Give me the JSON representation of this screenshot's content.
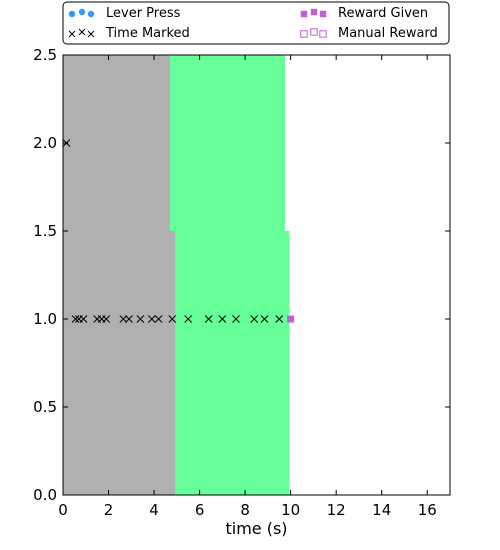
{
  "chart_data": {
    "type": "scatter",
    "title": "",
    "xlabel": "time (s)",
    "ylabel": "",
    "xlim": [
      0,
      17
    ],
    "ylim": [
      0,
      2.5
    ],
    "x_ticks": [
      "0",
      "2",
      "4",
      "6",
      "8",
      "10",
      "12",
      "14",
      "16"
    ],
    "y_ticks": [
      "0.0",
      "0.5",
      "1.0",
      "1.5",
      "2.0",
      "2.5"
    ],
    "grid": false,
    "legend": {
      "placement": "top",
      "entries": [
        {
          "name": "Lever Press",
          "marker": "circle-filled",
          "color": "#3399ff"
        },
        {
          "name": "Reward Given",
          "marker": "square-filled",
          "color": "#bf5fd6"
        },
        {
          "name": "Time Marked",
          "marker": "x",
          "color": "#000000"
        },
        {
          "name": "Manual Reward",
          "marker": "square-open",
          "color": "#bf5fd6"
        }
      ]
    },
    "shaded_regions": [
      {
        "x0": 0,
        "x1": 4.7,
        "y0": 1.5,
        "y1": 2.5,
        "color": "#b0b0b0"
      },
      {
        "x0": 4.7,
        "x1": 9.75,
        "y0": 1.5,
        "y1": 2.5,
        "color": "#66ff99"
      },
      {
        "x0": 0,
        "x1": 4.95,
        "y0": 0,
        "y1": 1.5,
        "color": "#b0b0b0"
      },
      {
        "x0": 4.95,
        "x1": 9.95,
        "y0": 0,
        "y1": 1.5,
        "color": "#66ff99"
      }
    ],
    "series": [
      {
        "name": "Time Marked",
        "marker": "x",
        "color": "#000000",
        "points": [
          [
            0.15,
            2.0
          ],
          [
            0.55,
            1.0
          ],
          [
            0.7,
            1.0
          ],
          [
            0.9,
            1.0
          ],
          [
            1.5,
            1.0
          ],
          [
            1.7,
            1.0
          ],
          [
            1.9,
            1.0
          ],
          [
            2.65,
            1.0
          ],
          [
            2.9,
            1.0
          ],
          [
            3.4,
            1.0
          ],
          [
            3.9,
            1.0
          ],
          [
            4.2,
            1.0
          ],
          [
            4.8,
            1.0
          ],
          [
            5.5,
            1.0
          ],
          [
            6.4,
            1.0
          ],
          [
            7.0,
            1.0
          ],
          [
            7.6,
            1.0
          ],
          [
            8.4,
            1.0
          ],
          [
            8.85,
            1.0
          ],
          [
            9.5,
            1.0
          ]
        ]
      },
      {
        "name": "Reward Given",
        "marker": "square-filled",
        "color": "#bf5fd6",
        "points": [
          [
            10.0,
            1.0
          ]
        ]
      }
    ]
  }
}
